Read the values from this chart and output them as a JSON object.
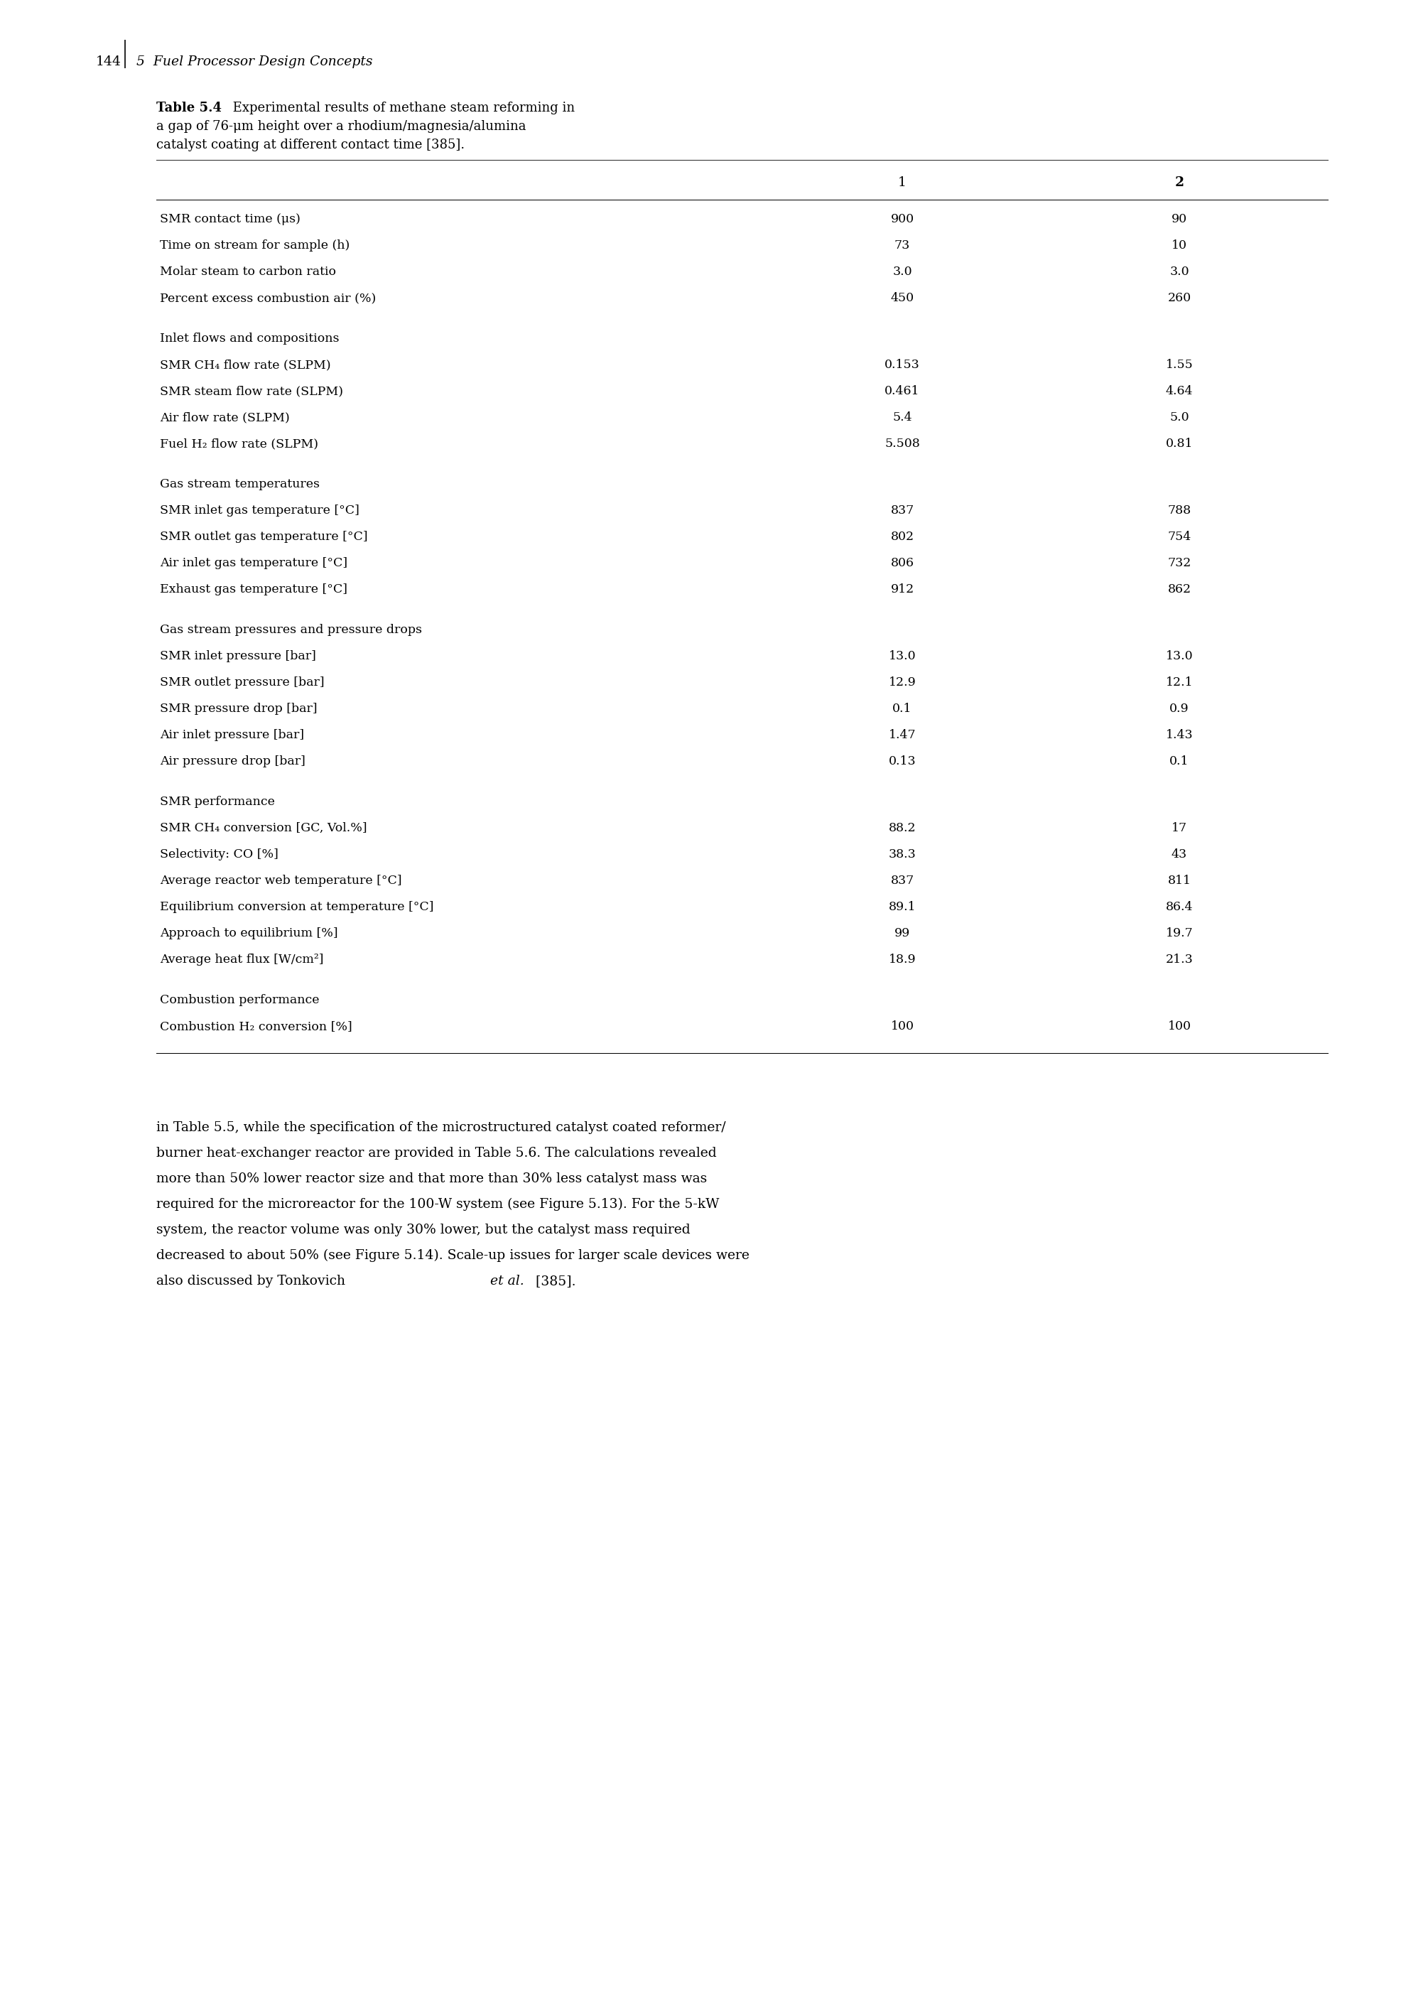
{
  "page_number": "144",
  "chapter_header": "5  Fuel Processor Design Concepts",
  "table_caption_bold": "Table 5.4",
  "table_caption_rest_line1": " Experimental results of methane steam reforming in",
  "table_caption_line2": "a gap of 76-μm height over a rhodium/magnesia/alumina",
  "table_caption_line3": "catalyst coating at different contact time [385].",
  "col_header1": "1",
  "col_header2": "2",
  "sections": [
    {
      "section_header": "",
      "rows": [
        {
          "label": "SMR contact time (μs)",
          "col1": "900",
          "col2": "90"
        },
        {
          "label": "Time on stream for sample (h)",
          "col1": "73",
          "col2": "10"
        },
        {
          "label": "Molar steam to carbon ratio",
          "col1": "3.0",
          "col2": "3.0"
        },
        {
          "label": "Percent excess combustion air (%)",
          "col1": "450",
          "col2": "260"
        }
      ]
    },
    {
      "section_header": "Inlet flows and compositions",
      "rows": [
        {
          "label": "SMR CH₄ flow rate (SLPM)",
          "col1": "0.153",
          "col2": "1.55"
        },
        {
          "label": "SMR steam flow rate (SLPM)",
          "col1": "0.461",
          "col2": "4.64"
        },
        {
          "label": "Air flow rate (SLPM)",
          "col1": "5.4",
          "col2": "5.0"
        },
        {
          "label": "Fuel H₂ flow rate (SLPM)",
          "col1": "5.508",
          "col2": "0.81"
        }
      ]
    },
    {
      "section_header": "Gas stream temperatures",
      "rows": [
        {
          "label": "SMR inlet gas temperature [°C]",
          "col1": "837",
          "col2": "788"
        },
        {
          "label": "SMR outlet gas temperature [°C]",
          "col1": "802",
          "col2": "754"
        },
        {
          "label": "Air inlet gas temperature [°C]",
          "col1": "806",
          "col2": "732"
        },
        {
          "label": "Exhaust gas temperature [°C]",
          "col1": "912",
          "col2": "862"
        }
      ]
    },
    {
      "section_header": "Gas stream pressures and pressure drops",
      "rows": [
        {
          "label": "SMR inlet pressure [bar]",
          "col1": "13.0",
          "col2": "13.0"
        },
        {
          "label": "SMR outlet pressure [bar]",
          "col1": "12.9",
          "col2": "12.1"
        },
        {
          "label": "SMR pressure drop [bar]",
          "col1": "0.1",
          "col2": "0.9"
        },
        {
          "label": "Air inlet pressure [bar]",
          "col1": "1.47",
          "col2": "1.43"
        },
        {
          "label": "Air pressure drop [bar]",
          "col1": "0.13",
          "col2": "0.1"
        }
      ]
    },
    {
      "section_header": "SMR performance",
      "rows": [
        {
          "label": "SMR CH₄ conversion [GC, Vol.%]",
          "col1": "88.2",
          "col2": "17"
        },
        {
          "label": "Selectivity: CO [%]",
          "col1": "38.3",
          "col2": "43"
        },
        {
          "label": "Average reactor web temperature [°C]",
          "col1": "837",
          "col2": "811"
        },
        {
          "label": "Equilibrium conversion at temperature [°C]",
          "col1": "89.1",
          "col2": "86.4"
        },
        {
          "label": "Approach to equilibrium [%]",
          "col1": "99",
          "col2": "19.7"
        },
        {
          "label": "Average heat flux [W/cm²]",
          "col1": "18.9",
          "col2": "21.3"
        }
      ]
    },
    {
      "section_header": "Combustion performance",
      "rows": [
        {
          "label": "Combustion H₂ conversion [%]",
          "col1": "100",
          "col2": "100"
        }
      ]
    }
  ],
  "body_lines": [
    "in Table 5.5, while the specification of the microstructured catalyst coated reformer/",
    "burner heat-exchanger reactor are provided in Table 5.6. The calculations revealed",
    "more than 50% lower reactor size and that more than 30% less catalyst mass was",
    "required for the microreactor for the 100-W system (see Figure 5.13). For the 5-kW",
    "system, the reactor volume was only 30% lower, but the catalyst mass required",
    "decreased to about 50% (see Figure 5.14). Scale-up issues for larger scale devices were",
    "also discussed by Tonkovich"
  ],
  "body_italic": "et al.",
  "body_end": " [385].",
  "bg_color": "#ffffff",
  "text_color": "#000000"
}
